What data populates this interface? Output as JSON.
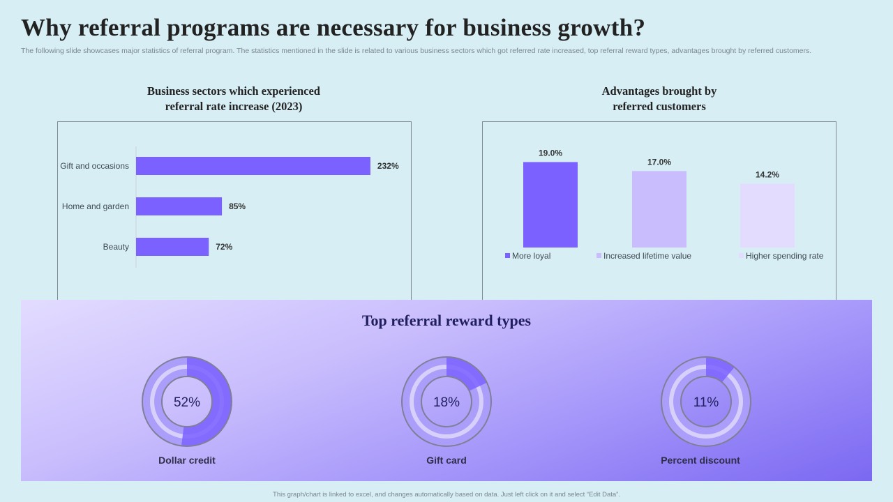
{
  "title": "Why referral programs are necessary for business growth?",
  "subtitle": "The following slide showcases major statistics of referral program. The statistics mentioned in the slide is related to various business sectors which got referred rate increased, top referral reward types, advantages brought by referred customers.",
  "colors": {
    "primary": "#7b61ff",
    "light": "#c9bdfd",
    "lighter": "#e3dcff",
    "background": "#d6eef4",
    "donut_ring": "#ab9efa",
    "donut_track": "#d7d0fb"
  },
  "chart_data": [
    {
      "type": "bar",
      "orientation": "horizontal",
      "title": "Business sectors which experienced\nreferral rate increase (2023)",
      "categories": [
        "Gift and occasions",
        "Home and garden",
        "Beauty"
      ],
      "values": [
        232,
        85,
        72
      ],
      "value_labels": [
        "232%",
        "85%",
        "72%"
      ],
      "unit": "%",
      "xlim": [
        0,
        250
      ],
      "grid": false
    },
    {
      "type": "bar",
      "title": "Advantages brought by\nreferred customers",
      "categories": [
        "More loyal",
        "Increased lifetime value",
        "Higher spending rate"
      ],
      "values": [
        19.0,
        17.0,
        14.2
      ],
      "value_labels": [
        "19.0%",
        "17.0%",
        "14.2%"
      ],
      "colors": [
        "#7b61ff",
        "#c9bdfd",
        "#e3dcff"
      ],
      "ylim": [
        0,
        20
      ],
      "legend_position": "bottom",
      "grid": false
    },
    {
      "type": "pie",
      "variant": "donut",
      "title": "Top referral reward types",
      "categories": [
        "Dollar credit",
        "Gift card",
        "Percent discount"
      ],
      "values": [
        52,
        18,
        11
      ],
      "value_labels": [
        "52%",
        "18%",
        "11%"
      ]
    }
  ],
  "footer": "This graph/chart is linked to excel, and changes automatically based on data. Just left click on it and select “Edit Data”."
}
